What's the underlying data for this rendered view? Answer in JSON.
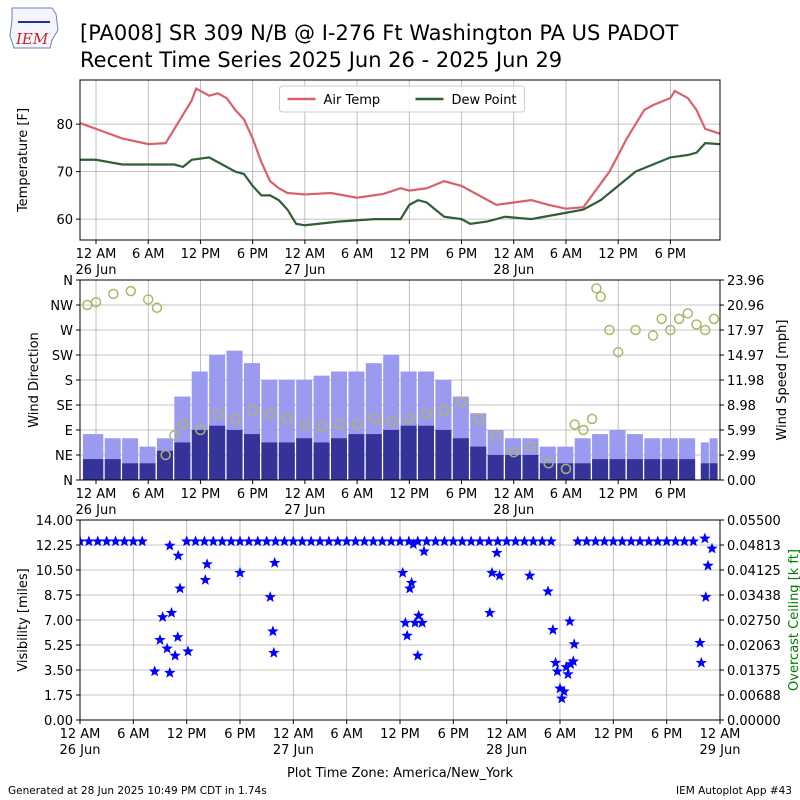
{
  "title_lines": [
    "[PA008] SR 309 N/B @ I-276 Ft Washington PA US  PADOT",
    "Recent Time Series 2025 Jun 26 - 2025 Jun 29"
  ],
  "logo_text": "IEM",
  "footer_left": "Generated at 28 Jun 2025 10:49 PM CDT in 1.74s",
  "footer_right": "IEM Autoplot App #43",
  "chart_data": [
    {
      "type": "line",
      "ylabel": "Temperature [F]",
      "grid": true,
      "legend": "upper center",
      "xlim": [
        -1.84,
        71.7
      ],
      "xticks": [
        {
          "value": 0,
          "label": "12 AM"
        },
        {
          "value": 6,
          "label": "6 AM"
        },
        {
          "value": 12,
          "label": "12 PM"
        },
        {
          "value": 18,
          "label": "6 PM"
        },
        {
          "value": 24,
          "label": "12 AM"
        },
        {
          "value": 30,
          "label": "6 AM"
        },
        {
          "value": 36,
          "label": "12 PM"
        },
        {
          "value": 42,
          "label": "6 PM"
        },
        {
          "value": 48,
          "label": "12 AM"
        },
        {
          "value": 54,
          "label": "6 AM"
        },
        {
          "value": 60,
          "label": "12 PM"
        },
        {
          "value": 66,
          "label": "6 PM"
        }
      ],
      "xtick_dates": [
        {
          "value": 0,
          "label": "26 Jun"
        },
        {
          "value": 24,
          "label": "27 Jun"
        },
        {
          "value": 48,
          "label": "28 Jun"
        }
      ],
      "ylim": [
        55.6,
        89.3
      ],
      "yticks": [
        60,
        70,
        80
      ],
      "series": [
        {
          "name": "Air Temp",
          "color": "#d9626a",
          "x": [
            -1.8,
            0,
            3,
            6,
            8,
            9,
            10,
            11,
            11.5,
            13,
            14,
            15,
            16,
            17,
            18,
            19,
            20,
            21,
            22,
            24,
            27,
            30,
            33,
            35,
            36,
            38,
            40,
            42,
            44,
            46,
            48,
            50,
            52,
            54,
            56,
            57,
            59,
            61,
            62,
            63,
            64,
            66,
            66.5,
            68,
            69,
            70,
            71.7
          ],
          "values": [
            80.2,
            79,
            77,
            75.8,
            76,
            79,
            82,
            85,
            87.5,
            86,
            86.5,
            85.5,
            83,
            81,
            77,
            72,
            68,
            66.5,
            65.5,
            65.2,
            65.5,
            64.5,
            65.3,
            66.5,
            66,
            66.5,
            68,
            67,
            65,
            63,
            63.5,
            64,
            63,
            62.2,
            62.5,
            65,
            70,
            77,
            80,
            83,
            84,
            85.5,
            87,
            85.5,
            83,
            79,
            78
          ]
        },
        {
          "name": "Dew Point",
          "color": "#2f5f37",
          "x": [
            -1.8,
            0,
            3,
            6,
            9,
            10,
            11,
            13,
            14,
            16,
            17,
            18,
            19,
            20,
            21,
            22,
            23,
            24,
            28,
            32,
            35,
            36,
            37,
            38,
            39,
            40,
            42,
            43,
            45,
            47,
            50,
            53,
            56,
            58,
            60,
            62,
            64,
            66,
            68,
            69,
            70,
            71.7
          ],
          "values": [
            72.5,
            72.5,
            71.5,
            71.5,
            71.5,
            71,
            72.5,
            73,
            72,
            70,
            69.5,
            67,
            65,
            65,
            64,
            62,
            59,
            58.7,
            59.5,
            60,
            60,
            63,
            64,
            63.5,
            62,
            60.5,
            60,
            59,
            59.5,
            60.5,
            60,
            61,
            62,
            64,
            67,
            70,
            71.5,
            73,
            73.5,
            74,
            76,
            75.8
          ]
        }
      ]
    },
    {
      "type": "bar",
      "ylabel": "Wind Direction",
      "y2label": "Wind Speed [mph]",
      "grid": true,
      "xlim": [
        -1.84,
        71.7
      ],
      "xticks": [
        {
          "value": 0,
          "label": "12 AM"
        },
        {
          "value": 6,
          "label": "6 AM"
        },
        {
          "value": 12,
          "label": "12 PM"
        },
        {
          "value": 18,
          "label": "6 PM"
        },
        {
          "value": 24,
          "label": "12 AM"
        },
        {
          "value": 30,
          "label": "6 AM"
        },
        {
          "value": 36,
          "label": "12 PM"
        },
        {
          "value": 42,
          "label": "6 PM"
        },
        {
          "value": 48,
          "label": "12 AM"
        },
        {
          "value": 54,
          "label": "6 AM"
        },
        {
          "value": 60,
          "label": "12 PM"
        },
        {
          "value": 66,
          "label": "6 PM"
        }
      ],
      "xtick_dates": [
        {
          "value": 0,
          "label": "26 Jun"
        },
        {
          "value": 24,
          "label": "27 Jun"
        },
        {
          "value": 48,
          "label": "28 Jun"
        }
      ],
      "ylim": [
        0,
        360
      ],
      "yticks": [
        {
          "value": 0,
          "label": "N"
        },
        {
          "value": 45,
          "label": "NE"
        },
        {
          "value": 90,
          "label": "E"
        },
        {
          "value": 135,
          "label": "SE"
        },
        {
          "value": 180,
          "label": "S"
        },
        {
          "value": 225,
          "label": "SW"
        },
        {
          "value": 270,
          "label": "W"
        },
        {
          "value": 315,
          "label": "NW"
        },
        {
          "value": 360,
          "label": "N"
        }
      ],
      "y2lim": [
        0,
        23.96
      ],
      "y2ticks": [
        {
          "value": 0,
          "label": "0.00"
        },
        2.99,
        5.99,
        8.98,
        11.98,
        14.97,
        17.97,
        20.96,
        23.96
      ],
      "x": [
        -1,
        0,
        2,
        4,
        6,
        8,
        10,
        12,
        14,
        16,
        18,
        20,
        22,
        24,
        26,
        28,
        30,
        32,
        34,
        36,
        38,
        40,
        42,
        44,
        46,
        48,
        50,
        52,
        54,
        56,
        58,
        60,
        62,
        64,
        66,
        68,
        70,
        71
      ],
      "series": [
        {
          "axis": "y2",
          "color": "#9a9af0",
          "values": [
            5.5,
            5.5,
            5,
            5,
            4,
            5,
            10,
            13,
            15,
            15.5,
            14,
            12,
            12,
            12,
            12.5,
            13,
            13,
            14,
            15,
            13,
            13,
            12,
            10,
            8,
            6,
            5,
            5,
            4,
            4,
            5,
            5.5,
            6,
            5.5,
            5,
            5,
            5,
            4.5,
            5
          ]
        },
        {
          "axis": "y2",
          "color": "#333399",
          "values": [
            2.5,
            2.5,
            2.5,
            2,
            2,
            3.5,
            4.5,
            6,
            6.5,
            6,
            5.5,
            4.5,
            4.5,
            5,
            4.5,
            5,
            5.5,
            5.5,
            6,
            6.5,
            6.5,
            6,
            5,
            4,
            3,
            3,
            3,
            2,
            2,
            2,
            2.5,
            2.5,
            2.5,
            2.5,
            2.5,
            2.5,
            2,
            2
          ]
        },
        {
          "type": "scatter",
          "marker": "o",
          "color": "#b0b46a",
          "x": [
            -1,
            0,
            2,
            4,
            6,
            7,
            8,
            9,
            10,
            12,
            14,
            16,
            18,
            20,
            22,
            24,
            26,
            28,
            30,
            32,
            34,
            36,
            38,
            40,
            42,
            44,
            46,
            48,
            50,
            52,
            54,
            55,
            56,
            57,
            57.5,
            58,
            59,
            60,
            62,
            64,
            65,
            66,
            67,
            68,
            69,
            70,
            71
          ],
          "values": [
            315,
            320,
            335,
            340,
            325,
            310,
            45,
            80,
            100,
            90,
            120,
            110,
            125,
            120,
            110,
            100,
            95,
            100,
            100,
            110,
            105,
            110,
            120,
            125,
            140,
            110,
            80,
            50,
            60,
            30,
            20,
            100,
            90,
            110,
            345,
            330,
            270,
            230,
            270,
            260,
            290,
            270,
            290,
            300,
            280,
            270,
            290
          ]
        }
      ]
    },
    {
      "type": "scatter",
      "ylabel": "Visibility [miles]",
      "y2label": "Overcast Ceiling [k ft]",
      "y2label_color": "#008000",
      "xlabel": "Plot Time Zone: America/New_York",
      "grid": true,
      "xlim": [
        0,
        72
      ],
      "xticks": [
        {
          "value": 0,
          "label": "12 AM"
        },
        {
          "value": 6,
          "label": "6 AM"
        },
        {
          "value": 12,
          "label": "12 PM"
        },
        {
          "value": 18,
          "label": "6 PM"
        },
        {
          "value": 24,
          "label": "12 AM"
        },
        {
          "value": 30,
          "label": "6 AM"
        },
        {
          "value": 36,
          "label": "12 PM"
        },
        {
          "value": 42,
          "label": "6 PM"
        },
        {
          "value": 48,
          "label": "12 AM"
        },
        {
          "value": 54,
          "label": "6 AM"
        },
        {
          "value": 60,
          "label": "12 PM"
        },
        {
          "value": 66,
          "label": "6 PM"
        },
        {
          "value": 72,
          "label": "12 AM"
        }
      ],
      "xtick_dates": [
        {
          "value": 0,
          "label": "26 Jun"
        },
        {
          "value": 24,
          "label": "27 Jun"
        },
        {
          "value": 48,
          "label": "28 Jun"
        },
        {
          "value": 72,
          "label": "29 Jun"
        }
      ],
      "ylim": [
        0,
        14
      ],
      "yticks": [
        {
          "value": 0,
          "label": "0.00"
        },
        1.75,
        {
          "value": 3.5,
          "label": "3.50"
        },
        5.25,
        {
          "value": 7,
          "label": "7.00"
        },
        8.75,
        {
          "value": 10.5,
          "label": "10.50"
        },
        12.25,
        {
          "value": 14,
          "label": "14.00"
        }
      ],
      "y2lim": [
        0,
        0.055
      ],
      "y2ticks": [
        {
          "value": 0,
          "label": "0.00000"
        },
        {
          "value": 0.00688,
          "label": "0.00688"
        },
        {
          "value": 0.01375,
          "label": "0.01375"
        },
        {
          "value": 0.02063,
          "label": "0.02063"
        },
        {
          "value": 0.0275,
          "label": "0.02750"
        },
        {
          "value": 0.03438,
          "label": "0.03438"
        },
        {
          "value": 0.04125,
          "label": "0.04125"
        },
        {
          "value": 0.04813,
          "label": "0.04813"
        },
        {
          "value": 0.055,
          "label": "0.05500"
        }
      ],
      "series": [
        {
          "marker": "*",
          "color": "#0000ff",
          "x": [
            0,
            1,
            2,
            3,
            4,
            5,
            6,
            7,
            12,
            13,
            14,
            15,
            16,
            17,
            18,
            19,
            20,
            21,
            22,
            23,
            24,
            25,
            26,
            27,
            28,
            29,
            30,
            31,
            32,
            33,
            34,
            35,
            36,
            37,
            38,
            39,
            40,
            41,
            42,
            43,
            44,
            45,
            46,
            47,
            48,
            49,
            50,
            51,
            52,
            53,
            56,
            57,
            58,
            59,
            60,
            61,
            62,
            63,
            64,
            65,
            66,
            67,
            68,
            69,
            8.4,
            9,
            9.3,
            9.8,
            10.1,
            10.3,
            10.7,
            11.0,
            11.25,
            11.05,
            10.1,
            12.15,
            14.1,
            14.3,
            18,
            21.4,
            21.7,
            21.9,
            21.8,
            36.3,
            36.6,
            36.8,
            37.1,
            37.3,
            37.7,
            38,
            38.1,
            38.5,
            38.7,
            37.5,
            46.1,
            46.35,
            46.9,
            47.2,
            50.6,
            52.65,
            53.2,
            53.5,
            53.7,
            54,
            54.2,
            54.45,
            54.7,
            54.9,
            55.1,
            55.5,
            55.6,
            55.2,
            69.75,
            69.9,
            70.4,
            70.65,
            71.1,
            70.3
          ],
          "values": [
            12.5,
            12.5,
            12.5,
            12.5,
            12.5,
            12.5,
            12.5,
            12.5,
            12.5,
            12.5,
            12.5,
            12.5,
            12.5,
            12.5,
            12.5,
            12.5,
            12.5,
            12.5,
            12.5,
            12.5,
            12.5,
            12.5,
            12.5,
            12.5,
            12.5,
            12.5,
            12.5,
            12.5,
            12.5,
            12.5,
            12.5,
            12.5,
            12.5,
            12.5,
            12.5,
            12.5,
            12.5,
            12.5,
            12.5,
            12.5,
            12.5,
            12.5,
            12.5,
            12.5,
            12.5,
            12.5,
            12.5,
            12.5,
            12.5,
            12.5,
            12.5,
            12.5,
            12.5,
            12.5,
            12.5,
            12.5,
            12.5,
            12.5,
            12.5,
            12.5,
            12.5,
            12.5,
            12.5,
            12.5,
            3.4,
            5.6,
            7.2,
            5.0,
            3.3,
            7.5,
            4.5,
            5.8,
            9.2,
            11.5,
            12.2,
            4.8,
            9.8,
            10.9,
            10.3,
            8.6,
            6.2,
            11.0,
            4.7,
            10.3,
            6.8,
            5.9,
            9.2,
            9.6,
            6.8,
            4.5,
            7.3,
            6.8,
            11.8,
            12.3,
            7.5,
            10.3,
            11.7,
            10.1,
            10.1,
            9.0,
            6.3,
            4.0,
            3.4,
            2.2,
            1.5,
            2.0,
            3.7,
            3.2,
            6.9,
            4.1,
            5.3,
            3.9,
            5.4,
            4.0,
            8.6,
            10.8,
            12.0,
            12.7
          ]
        }
      ]
    }
  ]
}
